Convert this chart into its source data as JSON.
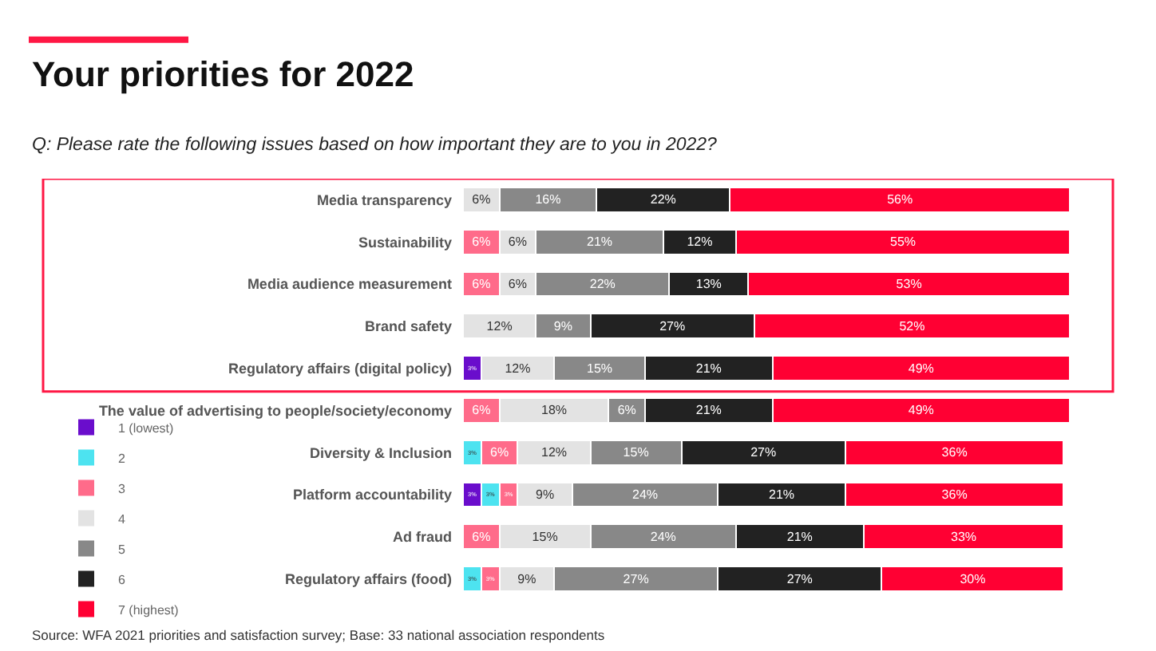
{
  "chart_data": {
    "type": "bar",
    "orientation": "horizontal",
    "stacked": true,
    "data_labels": true,
    "legend": "bottom left",
    "title": "Your priorities for 2022",
    "subtitle": "Q: Please rate the following issues based on how important they are to you in 2022?",
    "annotations": [
      "Source: WFA 2021 priorities and satisfaction survey; Base: 33 national association respondents"
    ],
    "categories": [
      "Media transparency",
      "Sustainability",
      "Media audience measurement",
      "Brand safety",
      "Regulatory affairs (digital policy)",
      "The value of advertising to people/society/economy",
      "Diversity & Inclusion",
      "Platform accountability",
      "Ad fraud",
      "Regulatory affairs (food)"
    ],
    "series": [
      {
        "name": "1 (lowest)",
        "color": "#6a0dcc",
        "values": [
          null,
          null,
          null,
          null,
          3,
          null,
          null,
          3,
          null,
          null
        ],
        "value_labels": [
          null,
          null,
          null,
          null,
          "3%",
          null,
          null,
          "3%",
          null,
          null
        ]
      },
      {
        "name": "2",
        "color": "#4de3f0",
        "values": [
          null,
          null,
          null,
          null,
          null,
          null,
          3,
          3,
          null,
          3
        ],
        "value_labels": [
          null,
          null,
          null,
          null,
          null,
          null,
          "3%",
          "3%",
          null,
          "3%"
        ]
      },
      {
        "name": "3",
        "color": "#ff6b8a",
        "values": [
          null,
          6,
          6,
          null,
          null,
          6,
          6,
          3,
          6,
          3
        ],
        "value_labels": [
          null,
          "6%",
          "6%",
          null,
          null,
          "6%",
          "6%",
          "3%",
          "6%",
          "3%"
        ]
      },
      {
        "name": "4",
        "color": "#e3e3e3",
        "values": [
          6,
          6,
          6,
          12,
          12,
          18,
          12,
          9,
          15,
          9
        ],
        "value_labels": [
          "6%",
          "6%",
          "6%",
          "12%",
          "12%",
          "18%",
          "12%",
          "9%",
          "15%",
          "9%"
        ]
      },
      {
        "name": "5",
        "color": "#888888",
        "values": [
          16,
          21,
          22,
          9,
          15,
          6,
          15,
          24,
          24,
          27
        ],
        "value_labels": [
          "16%",
          "21%",
          "22%",
          "9%",
          "15%",
          "6%",
          "15%",
          "24%",
          "24%",
          "27%"
        ]
      },
      {
        "name": "6",
        "color": "#222222",
        "values": [
          22,
          12,
          13,
          27,
          21,
          21,
          27,
          21,
          21,
          27
        ],
        "value_labels": [
          "22%",
          "12%",
          "13%",
          "27%",
          "21%",
          "21%",
          "27%",
          "21%",
          "21%",
          "27%"
        ]
      },
      {
        "name": "7 (highest)",
        "color": "#ff0033",
        "values": [
          56,
          55,
          53,
          52,
          49,
          49,
          36,
          36,
          33,
          30
        ],
        "value_labels": [
          "56%",
          "55%",
          "53%",
          "52%",
          "49%",
          "49%",
          "36%",
          "36%",
          "33%",
          "30%"
        ]
      }
    ]
  }
}
